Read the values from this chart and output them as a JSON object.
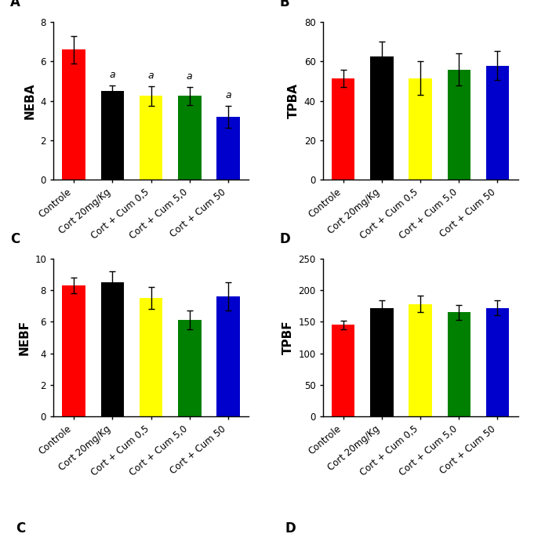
{
  "categories": [
    "Controle",
    "Cort 20mg/Kg",
    "Cort + Cum 0,5",
    "Cort + Cum 5,0",
    "Cort + Cum 50"
  ],
  "colors": [
    "#ff0000",
    "#000000",
    "#ffff00",
    "#008000",
    "#0000cc"
  ],
  "panel_A": {
    "ylabel": "NEBA",
    "ylim": [
      0,
      8
    ],
    "yticks": [
      0,
      2,
      4,
      6,
      8
    ],
    "values": [
      6.6,
      4.5,
      4.25,
      4.25,
      3.2
    ],
    "errors": [
      0.7,
      0.3,
      0.5,
      0.45,
      0.55
    ],
    "sig_labels": [
      "",
      "a",
      "a",
      "a",
      "a"
    ]
  },
  "panel_B": {
    "ylabel": "TPBA",
    "ylim": [
      0,
      80
    ],
    "yticks": [
      0,
      20,
      40,
      60,
      80
    ],
    "values": [
      51.5,
      62.5,
      51.5,
      56.0,
      58.0
    ],
    "errors": [
      4.5,
      7.5,
      8.5,
      8.0,
      7.5
    ],
    "sig_labels": [
      "",
      "",
      "",
      "",
      ""
    ]
  },
  "panel_C": {
    "ylabel": "NEBF",
    "ylim": [
      0,
      10
    ],
    "yticks": [
      0,
      2,
      4,
      6,
      8,
      10
    ],
    "values": [
      8.3,
      8.5,
      7.5,
      6.1,
      7.6
    ],
    "errors": [
      0.5,
      0.7,
      0.7,
      0.6,
      0.9
    ],
    "sig_labels": [
      "",
      "",
      "",
      "",
      ""
    ]
  },
  "panel_D": {
    "ylabel": "TPBF",
    "ylim": [
      0,
      250
    ],
    "yticks": [
      0,
      50,
      100,
      150,
      200,
      250
    ],
    "values": [
      145,
      172,
      178,
      165,
      172
    ],
    "errors": [
      7,
      12,
      13,
      12,
      12
    ],
    "sig_labels": [
      "",
      "",
      "",
      "",
      ""
    ]
  },
  "xlabel_rotation": 40,
  "bar_width": 0.6,
  "background_color": "#ffffff",
  "tick_fontsize": 8.5,
  "ylabel_fontsize": 11,
  "panel_label_fontsize": 12,
  "sig_fontsize": 9,
  "panel_labels": [
    "A",
    "B",
    "C",
    "D"
  ],
  "bottom_letters": [
    "C",
    "D"
  ]
}
